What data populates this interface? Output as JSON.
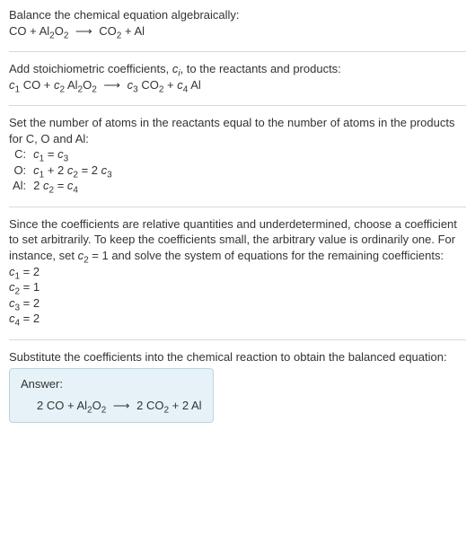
{
  "s1": {
    "intro": "Balance the chemical equation algebraically:",
    "eq_parts": {
      "r1": "CO",
      "plus1": " + ",
      "r2a": "Al",
      "r2s": "2",
      "r2b": "O",
      "r2s2": "2",
      "arrow": " ⟶ ",
      "p1a": "CO",
      "p1s": "2",
      "plus2": " + ",
      "p2": "Al"
    }
  },
  "s2": {
    "intro_a": "Add stoichiometric coefficients, ",
    "intro_ci": "c",
    "intro_ci_sub": "i",
    "intro_b": ", to the reactants and products:",
    "eq": {
      "c1": "c",
      "c1s": "1",
      "sp1": " ",
      "r1": "CO",
      "plus1": " + ",
      "c2": "c",
      "c2s": "2",
      "sp2": " ",
      "r2a": "Al",
      "r2s": "2",
      "r2b": "O",
      "r2s2": "2",
      "arrow": " ⟶ ",
      "c3": "c",
      "c3s": "3",
      "sp3": " ",
      "p1a": "CO",
      "p1s": "2",
      "plus2": " + ",
      "c4": "c",
      "c4s": "4",
      "sp4": " ",
      "p2": "Al"
    }
  },
  "s3": {
    "intro": "Set the number of atoms in the reactants equal to the number of atoms in the products for C, O and Al:",
    "rows": [
      {
        "lbl": "C:",
        "c1": "c",
        "c1s": "1",
        "eqs": " = ",
        "c3": "c",
        "c3s": "3"
      },
      {
        "lbl": "O:",
        "c1": "c",
        "c1s": "1",
        "plus": " + 2 ",
        "c2": "c",
        "c2s": "2",
        "eqs": " = 2 ",
        "c3": "c",
        "c3s": "3"
      },
      {
        "lbl": "Al:",
        "pre": "2 ",
        "c2": "c",
        "c2s": "2",
        "eqs": " = ",
        "c4": "c",
        "c4s": "4"
      }
    ]
  },
  "s4": {
    "intro_a": "Since the coefficients are relative quantities and underdetermined, choose a coefficient to set arbitrarily. To keep the coefficients small, the arbitrary value is ordinarily one. For instance, set ",
    "c2": "c",
    "c2s": "2",
    "intro_b": " = 1 and solve the system of equations for the remaining coefficients:",
    "lines": [
      {
        "c": "c",
        "cs": "1",
        "val": " = 2"
      },
      {
        "c": "c",
        "cs": "2",
        "val": " = 1"
      },
      {
        "c": "c",
        "cs": "3",
        "val": " = 2"
      },
      {
        "c": "c",
        "cs": "4",
        "val": " = 2"
      }
    ]
  },
  "s5": {
    "intro": "Substitute the coefficients into the chemical reaction to obtain the balanced equation:",
    "answer_label": "Answer:",
    "eq": {
      "r1": "2 CO",
      "plus1": " + ",
      "r2a": "Al",
      "r2s": "2",
      "r2b": "O",
      "r2s2": "2",
      "arrow": " ⟶ ",
      "p1a": "2 CO",
      "p1s": "2",
      "plus2": " + ",
      "p2": "2 Al"
    }
  }
}
